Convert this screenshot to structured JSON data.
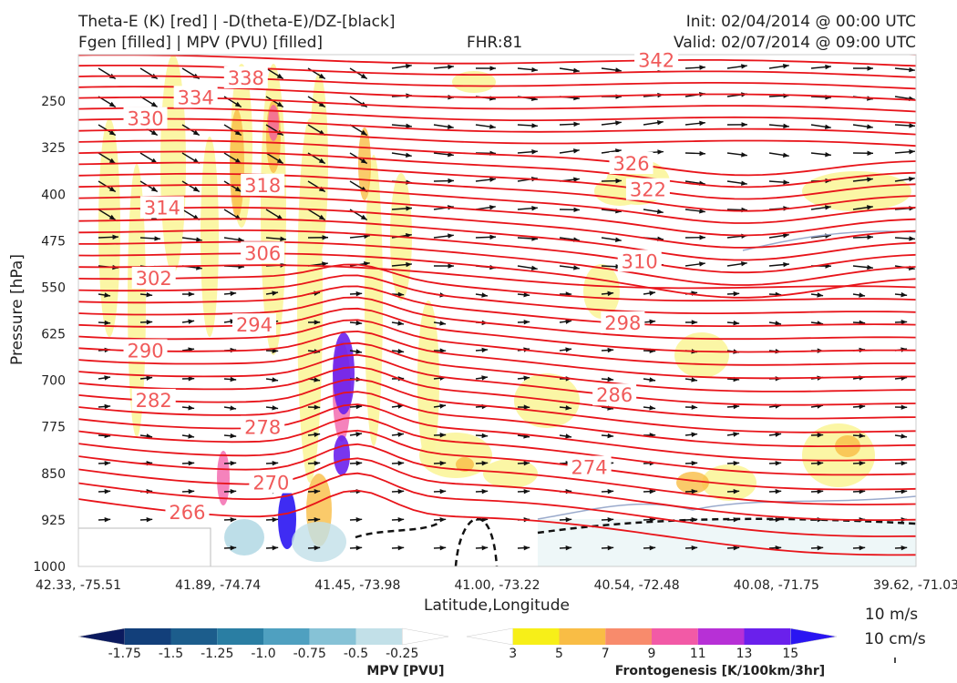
{
  "header": {
    "title_left_1": "Theta-E (K) [red] | -D(theta-E)/DZ-[black]",
    "title_left_2": "Fgen [filled] | MPV (PVU) [filled]",
    "title_center": "FHR:81",
    "title_right_1": "Init: 02/04/2014 @ 00:00 UTC",
    "title_right_2": "Valid: 02/07/2014 @ 09:00 UTC"
  },
  "chart_data": {
    "type": "cross-section",
    "xlabel": "Latitude,Longitude",
    "ylabel": "Pressure [hPa]",
    "x_ticks": [
      "42.33, -75.51",
      "41.89, -74.74",
      "41.45, -73.98",
      "41.00, -73.22",
      "40.54, -72.48",
      "40.08, -71.75",
      "39.62, -71.03"
    ],
    "y_ticks": [
      250,
      325,
      400,
      475,
      550,
      625,
      700,
      775,
      850,
      925,
      1000
    ],
    "ylim": [
      1000,
      175
    ],
    "theta_e_contours": [
      {
        "value": 266,
        "label": "266",
        "at_x": 0.13
      },
      {
        "value": 270,
        "label": "270",
        "at_x": 0.23
      },
      {
        "value": 274,
        "label": "274",
        "at_x": 0.61
      },
      {
        "value": 278,
        "label": "278",
        "at_x": 0.22
      },
      {
        "value": 282,
        "label": "282",
        "at_x": 0.09
      },
      {
        "value": 286,
        "label": "286",
        "at_x": 0.64
      },
      {
        "value": 290,
        "label": "290",
        "at_x": 0.08
      },
      {
        "value": 294,
        "label": "294",
        "at_x": 0.21
      },
      {
        "value": 298,
        "label": "298",
        "at_x": 0.65
      },
      {
        "value": 302,
        "label": "302",
        "at_x": 0.09
      },
      {
        "value": 306,
        "label": "306",
        "at_x": 0.22
      },
      {
        "value": 310,
        "label": "310",
        "at_x": 0.67
      },
      {
        "value": 314,
        "label": "314",
        "at_x": 0.1
      },
      {
        "value": 318,
        "label": "318",
        "at_x": 0.22
      },
      {
        "value": 322,
        "label": "322",
        "at_x": 0.68
      },
      {
        "value": 326,
        "label": "326",
        "at_x": 0.66
      },
      {
        "value": 330,
        "label": "330",
        "at_x": 0.08
      },
      {
        "value": 334,
        "label": "334",
        "at_x": 0.14
      },
      {
        "value": 338,
        "label": "338",
        "at_x": 0.2
      },
      {
        "value": 342,
        "label": "342",
        "at_x": 0.69
      }
    ],
    "mpv_colorbar": {
      "title": "MPV [PVU]",
      "ticks": [
        "-1.75",
        "-1.5",
        "-1.25",
        "-1.0",
        "-0.75",
        "-0.5",
        "-0.25"
      ],
      "colors": [
        "#0b1a5e",
        "#123f7a",
        "#1c5d8c",
        "#2a7ea3",
        "#4fa0c0",
        "#86c2d6",
        "#c2e0e8",
        "#ffffff"
      ]
    },
    "fgen_colorbar": {
      "title": "Frontogenesis [K/100km/3hr]",
      "ticks": [
        "3",
        "5",
        "7",
        "9",
        "11",
        "13",
        "15"
      ],
      "colors": [
        "#ffffff",
        "#f7ef18",
        "#f9bd45",
        "#f88b6c",
        "#f25aa6",
        "#b730d6",
        "#6a20ec",
        "#2a15f2"
      ]
    },
    "quiver_key": {
      "label1": "10 m/s",
      "label2": "10 cm/s"
    }
  }
}
